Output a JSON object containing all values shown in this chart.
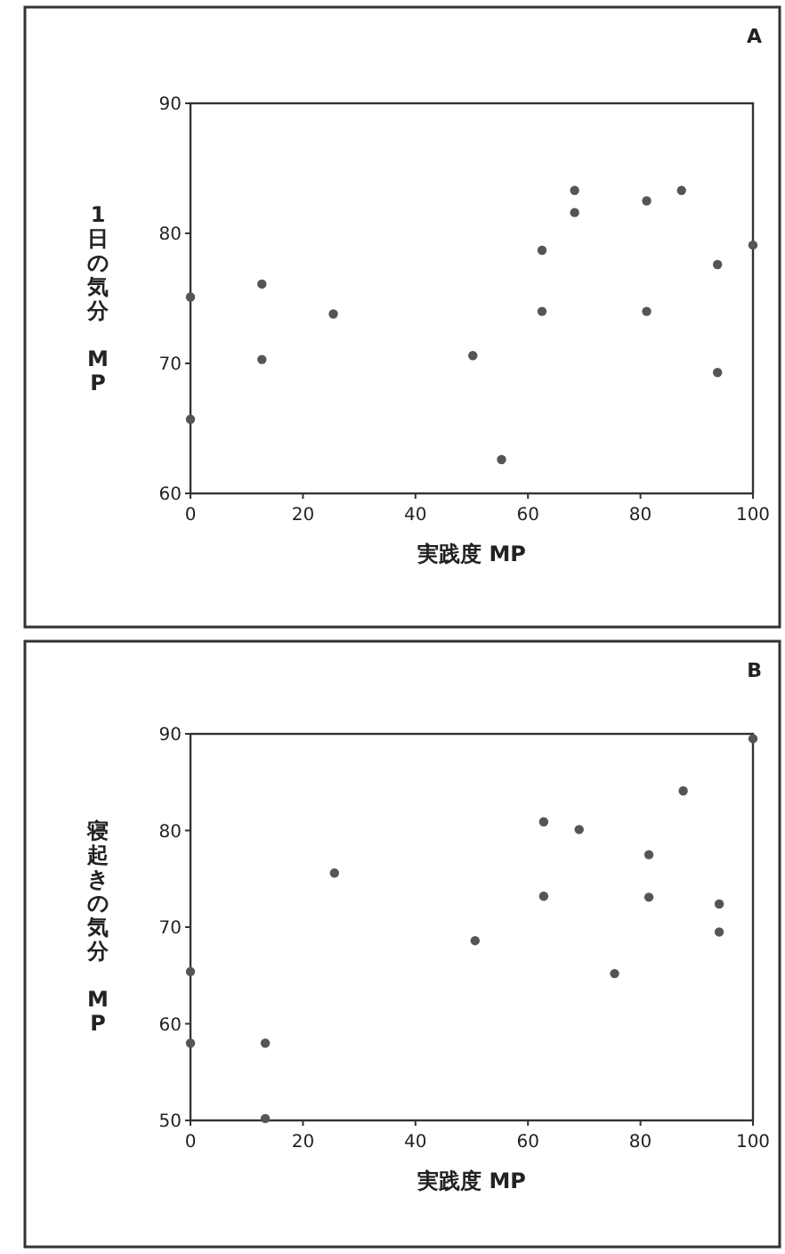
{
  "chart_data": [
    {
      "type": "scatter",
      "title": "A",
      "xlabel": "実践度 MP",
      "ylabel": "1日の気分 MP",
      "xlim": [
        0,
        100
      ],
      "ylim": [
        60,
        90
      ],
      "xticks": [
        0,
        20,
        40,
        60,
        80,
        100
      ],
      "yticks": [
        60,
        70,
        80,
        90
      ],
      "marker": "circle",
      "grid": false,
      "series": [
        {
          "color": "#555555",
          "x": [
            12.7,
            12.7,
            25.4,
            0,
            0,
            50.2,
            55.3,
            62.5,
            62.5,
            68.3,
            68.3,
            81.1,
            81.1,
            87.3,
            93.7,
            93.7,
            100
          ],
          "values": [
            76.1,
            70.3,
            73.8,
            75.1,
            65.7,
            70.6,
            62.6,
            78.7,
            74.0,
            83.3,
            81.6,
            82.5,
            74.0,
            83.3,
            77.6,
            69.3,
            79.1
          ]
        }
      ]
    },
    {
      "type": "scatter",
      "title": "B",
      "xlabel": "実践度 MP",
      "ylabel": "寝起きの気分 MP",
      "xlim": [
        0,
        100
      ],
      "ylim": [
        50,
        90
      ],
      "xticks": [
        0,
        20,
        40,
        60,
        80,
        100
      ],
      "yticks": [
        50,
        60,
        70,
        80,
        90
      ],
      "marker": "circle",
      "grid": false,
      "series": [
        {
          "color": "#555555",
          "x": [
            0,
            0,
            13.3,
            13.3,
            25.6,
            50.6,
            62.8,
            62.8,
            69.1,
            75.4,
            81.5,
            81.5,
            87.6,
            94.0,
            94.0,
            100
          ],
          "values": [
            65.4,
            58.0,
            58.0,
            50.2,
            75.6,
            68.6,
            80.9,
            73.2,
            80.1,
            65.2,
            77.5,
            73.1,
            84.1,
            72.4,
            69.5,
            89.5
          ]
        }
      ]
    }
  ]
}
